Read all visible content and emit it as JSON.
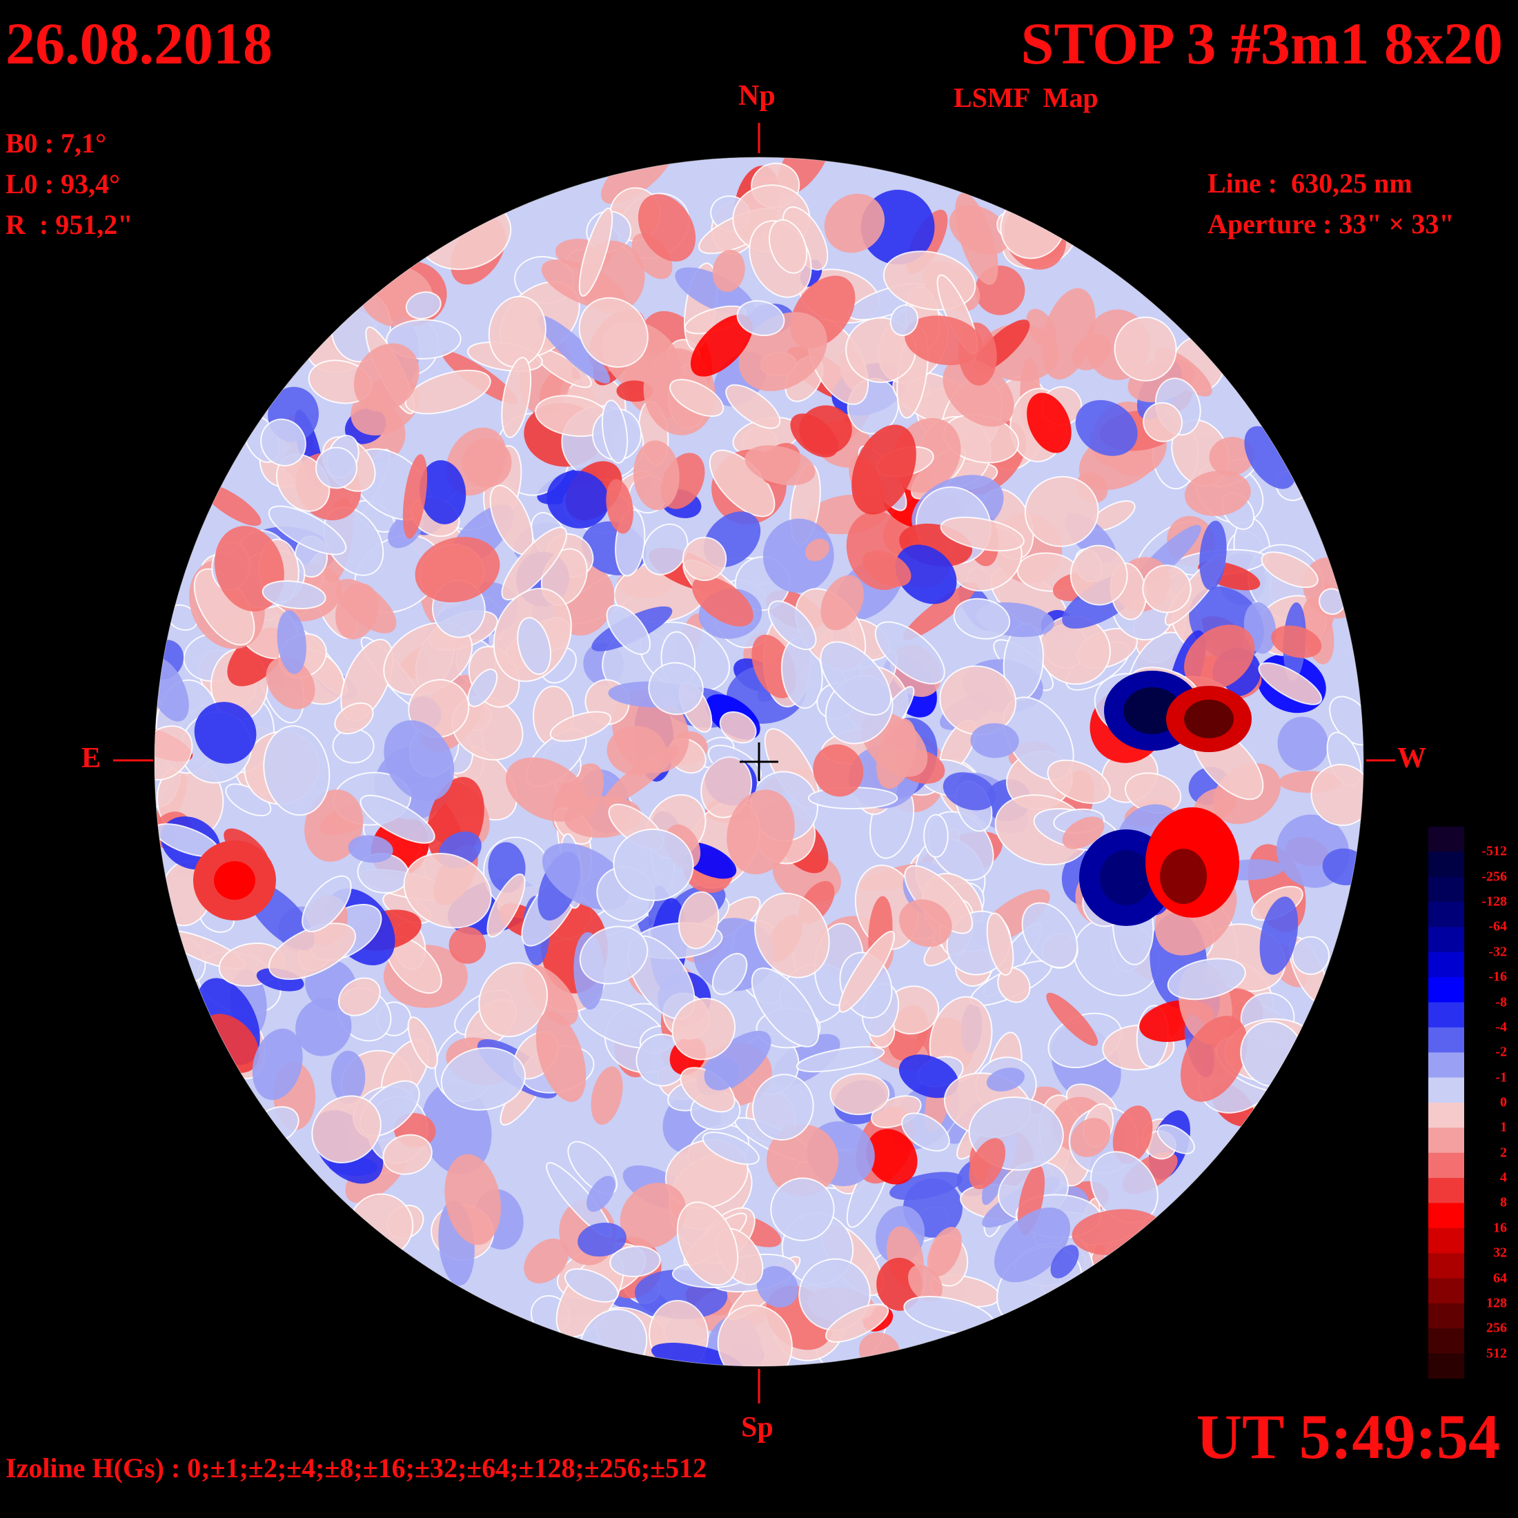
{
  "header": {
    "date": "26.08.2018",
    "title": "STOP 3 #3m1 8x20",
    "subtitle": "LSMF  Map"
  },
  "params": {
    "b0": "B0 : 7,1°",
    "l0": "L0 : 93,4°",
    "r": "R  : 951,2\""
  },
  "instrument": {
    "line": "Line :  630,25 nm",
    "aperture": "Aperture : 33\" × 33\""
  },
  "orientation": {
    "north": "Np",
    "south": "Sp",
    "east": "E",
    "west": "W"
  },
  "time": "UT 5:49:54",
  "izoline": "Izoline H(Gs) : 0;±1;±2;±4;±8;±16;±32;±64;±128;±256;±512",
  "legend": {
    "levels": [
      "-512",
      "-256",
      "-128",
      "-64",
      "-32",
      "-16",
      "-8",
      "-4",
      "-2",
      "-1",
      "0",
      "1",
      "2",
      "4",
      "8",
      "16",
      "32",
      "64",
      "128",
      "256",
      "512"
    ],
    "colors": [
      "#10002a",
      "#000045",
      "#00005a",
      "#000078",
      "#0000a0",
      "#0000d0",
      "#0000ff",
      "#2a30f0",
      "#5a62f0",
      "#9aa0f4",
      "#cacff6",
      "#f6caca",
      "#f4a0a0",
      "#f47070",
      "#f03a3a",
      "#ff0000",
      "#d40000",
      "#ac0000",
      "#850000",
      "#600000",
      "#420000",
      "#2a0000"
    ]
  },
  "colors": {
    "label_red": "#ff1010",
    "positive": "#ff0000",
    "negative": "#0000ff",
    "isoline": "#ffffff"
  }
}
